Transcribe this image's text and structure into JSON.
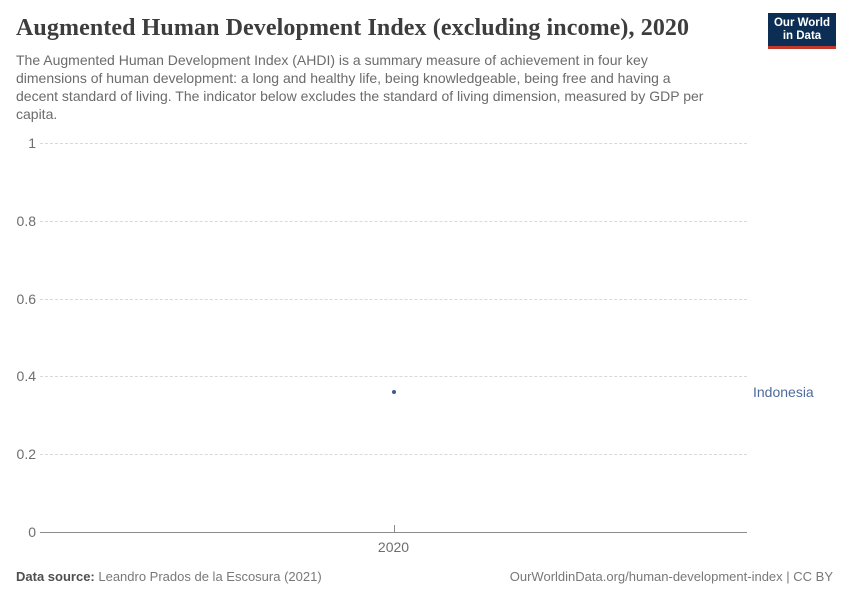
{
  "header": {
    "title": "Augmented Human Development Index (excluding income), 2020",
    "logo": {
      "line1": "Our World",
      "line2": "in Data"
    }
  },
  "subtitle": {
    "lines": [
      "The Augmented Human Development Index (AHDI) is a summary measure of achievement in four key",
      "dimensions of human development: a long and healthy life, being knowledgeable, being free and having a",
      "decent standard of living. The indicator below excludes the standard of living dimension, measured by GDP per",
      "capita."
    ]
  },
  "chart_data": {
    "type": "scatter",
    "title": "Augmented Human Development Index (excluding income), 2020",
    "series": [
      {
        "name": "Indonesia",
        "x": 2020,
        "y": 0.36
      }
    ],
    "x_ticks": [
      "2020"
    ],
    "y_ticks": [
      0,
      0.2,
      0.4,
      0.6,
      0.8,
      1
    ],
    "ylim": [
      0,
      1
    ],
    "grid": "horizontal-dashed",
    "legend_position": "right-of-point"
  },
  "footer": {
    "source_label": "Data source:",
    "source_value": " Leandro Prados de la Escosura (2021)",
    "link_text": "OurWorldinData.org/human-development-index | CC BY"
  },
  "colors": {
    "entity_label_blue": "#4c6a9c",
    "point_blue": "#3d5a8f",
    "logo_navy": "#0d2e54",
    "logo_red": "#c0392b",
    "gridline": "#d9d9d9",
    "axis": "#8c8c8c"
  }
}
